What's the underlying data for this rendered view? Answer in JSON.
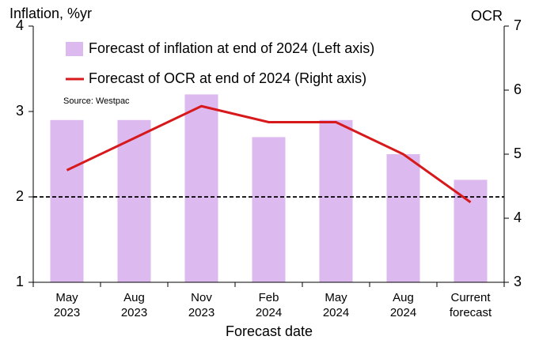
{
  "chart_data": {
    "type": "bar_line",
    "y_label": "Inflation, %yr",
    "y2_label": "OCR",
    "x_label": "Forecast date",
    "source": "Source: Westpac",
    "categories": [
      "May 2023",
      "Aug 2023",
      "Nov 2023",
      "Feb 2024",
      "May 2024",
      "Aug 2024",
      "Current forecast"
    ],
    "series": [
      {
        "name": "Forecast of inflation at end of 2024 (Left axis)",
        "type": "bar",
        "color": "#dcb9ef",
        "values": [
          2.9,
          2.9,
          3.2,
          2.7,
          2.9,
          2.5,
          2.2
        ]
      },
      {
        "name": "Forecast of OCR at end of 2024 (Right axis)",
        "type": "line",
        "axis": "y2",
        "color": "#d7191c",
        "values": [
          4.75,
          5.25,
          5.75,
          5.5,
          5.5,
          5.0,
          4.25
        ]
      }
    ],
    "reference_line": 2,
    "ylim": [
      1,
      4
    ],
    "yticks": [
      1,
      2,
      3,
      4
    ],
    "y2lim": [
      3,
      7
    ],
    "y2ticks": [
      3,
      4,
      5,
      6,
      7
    ]
  }
}
